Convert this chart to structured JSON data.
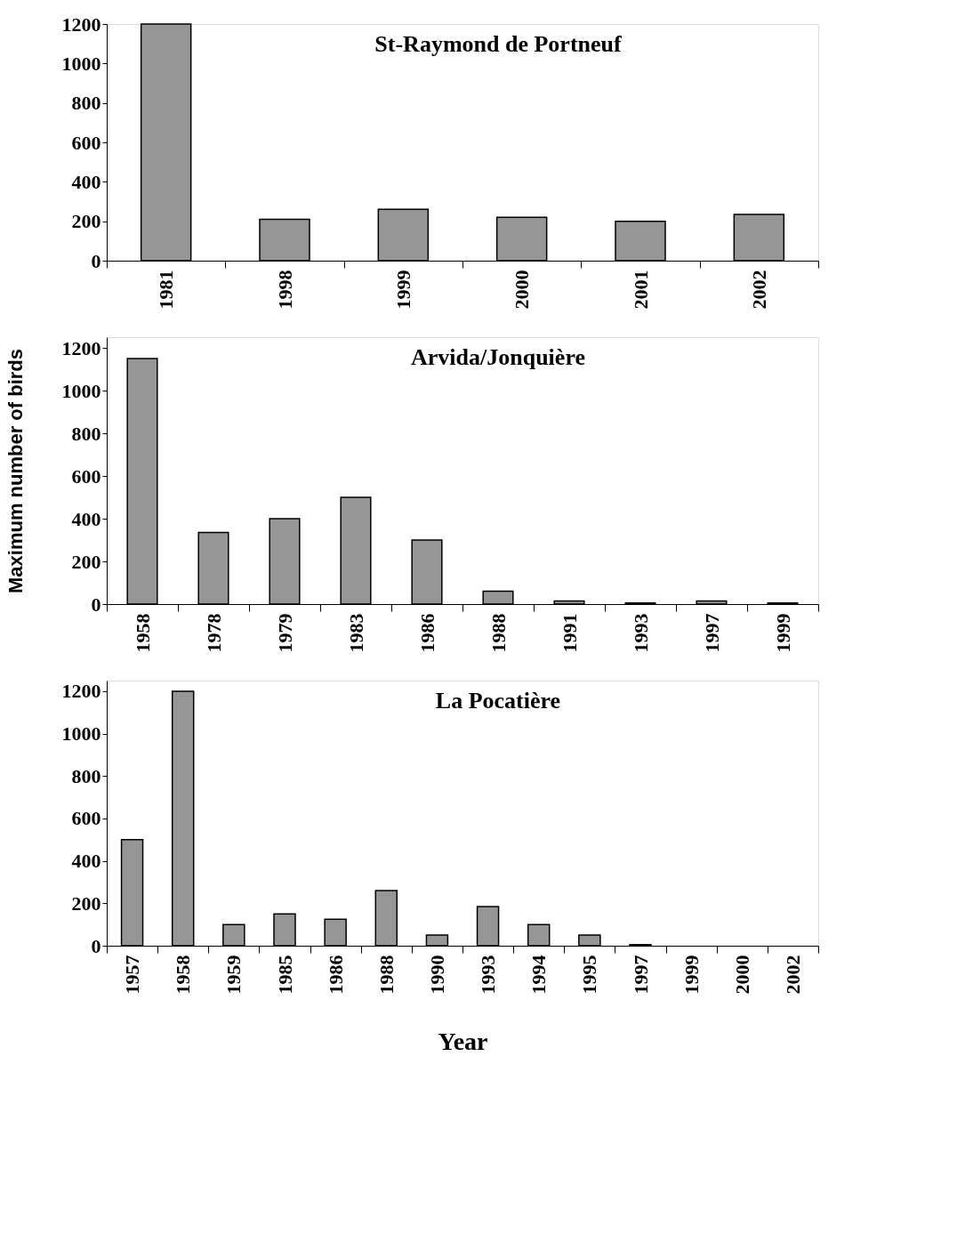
{
  "chart_data": [
    {
      "type": "bar",
      "title": "St-Raymond de Portneuf",
      "categories": [
        "1981",
        "1998",
        "1999",
        "2000",
        "2001",
        "2002"
      ],
      "values": [
        1200,
        210,
        260,
        220,
        200,
        235
      ],
      "color": "#969696",
      "ylim": [
        0,
        1200
      ],
      "yticks": [
        0,
        200,
        400,
        600,
        800,
        1000,
        1200
      ]
    },
    {
      "type": "bar",
      "title": "Arvida/Jonquière",
      "ylabel": "Maximum number of birds",
      "categories": [
        "1958",
        "1978",
        "1979",
        "1983",
        "1986",
        "1988",
        "1991",
        "1993",
        "1997",
        "1999"
      ],
      "values": [
        1150,
        335,
        400,
        500,
        300,
        60,
        15,
        5,
        15,
        5
      ],
      "color": "#969696",
      "ylim": [
        0,
        1250
      ],
      "yticks": [
        0,
        200,
        400,
        600,
        800,
        1000,
        1200
      ]
    },
    {
      "type": "bar",
      "title": "La Pocatière",
      "xlabel": "Year",
      "categories": [
        "1957",
        "1958",
        "1959",
        "1985",
        "1986",
        "1988",
        "1990",
        "1993",
        "1994",
        "1995",
        "1997",
        "1999",
        "2000",
        "2002"
      ],
      "values": [
        500,
        1200,
        100,
        150,
        125,
        260,
        50,
        185,
        100,
        50,
        5,
        null,
        null,
        null
      ],
      "color": "#969696",
      "ylim": [
        0,
        1250
      ],
      "yticks": [
        0,
        200,
        400,
        600,
        800,
        1000,
        1200
      ]
    }
  ]
}
